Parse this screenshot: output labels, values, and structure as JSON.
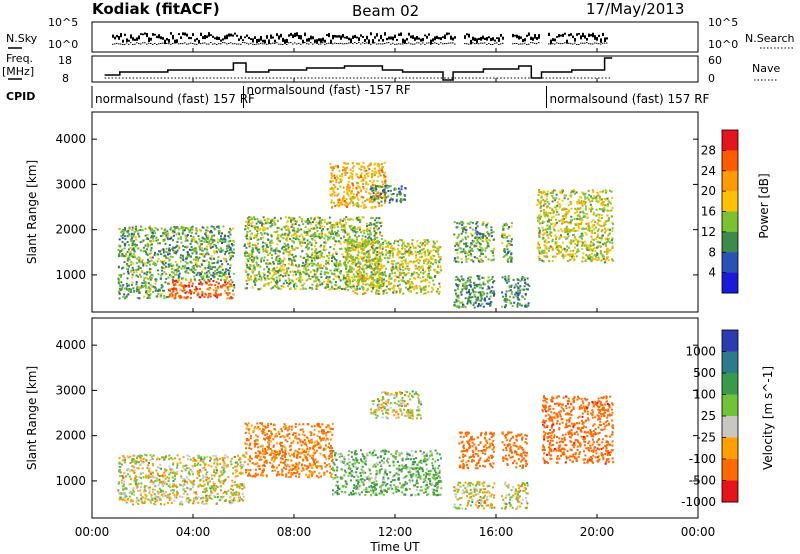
{
  "header": {
    "radar": "Kodiak (fitACF)",
    "beam": "Beam 02",
    "date": "17/May/2013"
  },
  "noise_panel": {
    "left_label": "N.Sky",
    "right_label": "N.Search",
    "left_ticks": [
      "10^5",
      "10^0"
    ],
    "right_ticks": [
      "10^5",
      "10^0"
    ]
  },
  "freq_panel": {
    "left_label_line1": "Freq.",
    "left_label_line2": "[MHz]",
    "right_label": "Nave",
    "left_ticks": [
      "18",
      "8"
    ],
    "right_ticks": [
      "60",
      "0"
    ]
  },
  "cpid": {
    "label": "CPID",
    "segments": [
      {
        "text": "normalsound (fast) 157 RF",
        "start_hour": 0.0
      },
      {
        "text": "normalsound (fast) -157 RF",
        "start_hour": 6.0
      },
      {
        "text": "normalsound (fast) 157 RF",
        "start_hour": 18.0
      }
    ]
  },
  "x_axis": {
    "label": "Time UT",
    "ticks": [
      "00:00",
      "04:00",
      "08:00",
      "12:00",
      "16:00",
      "20:00",
      "00:00"
    ]
  },
  "power_panel": {
    "y_label": "Slant Range [km]",
    "y_ticks": [
      "4000",
      "3000",
      "2000",
      "1000"
    ],
    "colorbar_label": "Power [dB]",
    "colorbar_ticks": [
      "28",
      "24",
      "20",
      "16",
      "12",
      "8",
      "4"
    ],
    "colors": [
      "#e8141c",
      "#ff5a00",
      "#ff9a00",
      "#ffc000",
      "#7ac232",
      "#3d8a4a",
      "#2a52b4",
      "#1a1ad8"
    ]
  },
  "velocity_panel": {
    "y_label": "Slant Range [km]",
    "y_ticks": [
      "4000",
      "3000",
      "2000",
      "1000"
    ],
    "colorbar_label": "Velocity [m s^-1]",
    "colorbar_ticks": [
      "1000",
      "500",
      "100",
      "25",
      "-25",
      "-100",
      "-500",
      "-1000"
    ],
    "colors": [
      "#2a3cb0",
      "#2e7a8c",
      "#3b9a4a",
      "#6fc23a",
      "#c8c8c0",
      "#ffa000",
      "#ff6a00",
      "#e8141c"
    ]
  },
  "chart_data": [
    {
      "type": "heatmap",
      "title": "Power",
      "xlabel": "Time UT",
      "ylabel": "Slant Range [km]",
      "xlim_hours": [
        0,
        24
      ],
      "ylim_km": [
        180,
        4600
      ],
      "colorbar": "Power [dB]",
      "data_gaps_hours": [
        [
          0.0,
          0.35
        ],
        [
          14.0,
          14.3
        ],
        [
          15.9,
          16.2
        ],
        [
          17.3,
          17.6
        ],
        [
          20.6,
          24.0
        ]
      ],
      "echo_regions": [
        {
          "t_start": 1.0,
          "t_end": 5.6,
          "r_start": 500,
          "r_end": 2100,
          "power_db": 12,
          "peak_power_db": 26
        },
        {
          "t_start": 6.0,
          "t_end": 11.5,
          "r_start": 700,
          "r_end": 2300,
          "power_db": 14
        },
        {
          "t_start": 9.4,
          "t_end": 11.6,
          "r_start": 2500,
          "r_end": 3500,
          "power_db": 20
        },
        {
          "t_start": 10.0,
          "t_end": 13.8,
          "r_start": 600,
          "r_end": 1800,
          "power_db": 16
        },
        {
          "t_start": 11.0,
          "t_end": 12.4,
          "r_start": 2600,
          "r_end": 3000,
          "power_db": 10
        },
        {
          "t_start": 14.3,
          "t_end": 17.3,
          "r_start": 300,
          "r_end": 1000,
          "power_db": 10
        },
        {
          "t_start": 14.3,
          "t_end": 16.6,
          "r_start": 1300,
          "r_end": 2200,
          "power_db": 12
        },
        {
          "t_start": 17.6,
          "t_end": 20.6,
          "r_start": 1300,
          "r_end": 2900,
          "power_db": 16
        }
      ]
    },
    {
      "type": "heatmap",
      "title": "Velocity",
      "xlabel": "Time UT",
      "ylabel": "Slant Range [km]",
      "xlim_hours": [
        0,
        24
      ],
      "ylim_km": [
        180,
        4600
      ],
      "colorbar": "Velocity [m s^-1]",
      "echo_regions": [
        {
          "t_start": 1.0,
          "t_end": 6.0,
          "r_start": 500,
          "r_end": 1600,
          "velocity_ms": 0
        },
        {
          "t_start": 6.0,
          "t_end": 9.5,
          "r_start": 1100,
          "r_end": 2300,
          "velocity_ms": -150
        },
        {
          "t_start": 9.5,
          "t_end": 13.8,
          "r_start": 700,
          "r_end": 1700,
          "velocity_ms": 100
        },
        {
          "t_start": 11.0,
          "t_end": 13.0,
          "r_start": 2400,
          "r_end": 3000,
          "velocity_ms": 0
        },
        {
          "t_start": 14.3,
          "t_end": 17.3,
          "r_start": 400,
          "r_end": 1000,
          "velocity_ms": 0
        },
        {
          "t_start": 14.5,
          "t_end": 17.2,
          "r_start": 1300,
          "r_end": 2100,
          "velocity_ms": -200
        },
        {
          "t_start": 17.8,
          "t_end": 20.6,
          "r_start": 1400,
          "r_end": 2900,
          "velocity_ms": -400
        }
      ]
    }
  ]
}
